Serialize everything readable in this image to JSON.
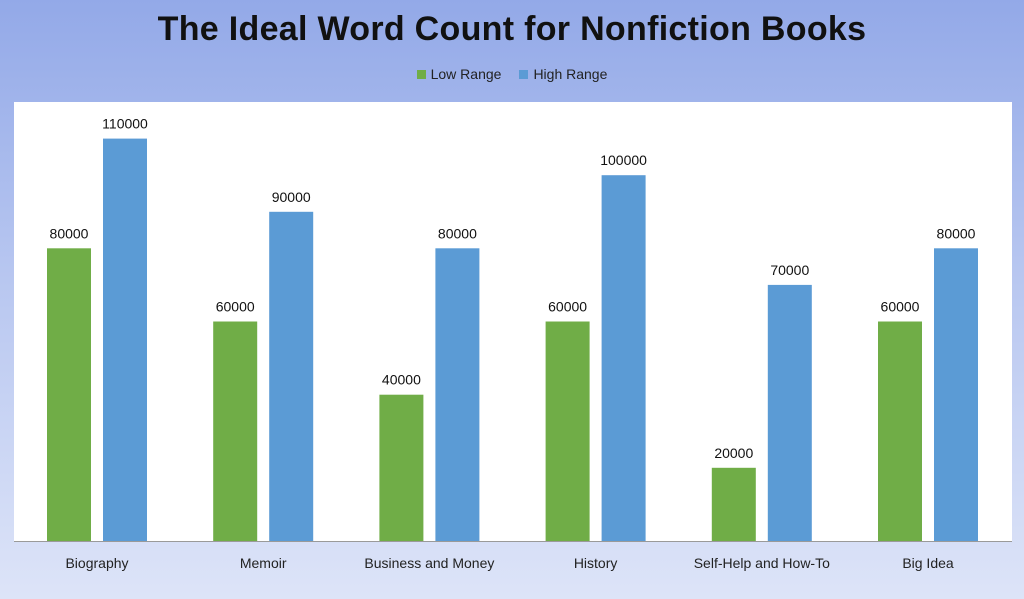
{
  "chart_data": {
    "type": "bar",
    "title": "The Ideal Word Count for Nonfiction Books",
    "categories": [
      "Biography",
      "Memoir",
      "Business and Money",
      "History",
      "Self-Help and How-To",
      "Big Idea"
    ],
    "series": [
      {
        "name": "Low Range",
        "color": "#70ad47",
        "values": [
          80000,
          60000,
          40000,
          60000,
          20000,
          60000
        ]
      },
      {
        "name": "High Range",
        "color": "#5b9bd5",
        "values": [
          110000,
          90000,
          80000,
          100000,
          70000,
          80000
        ]
      }
    ],
    "ylim": [
      0,
      120000
    ],
    "xlabel": "",
    "ylabel": "",
    "legend_position": "top",
    "grid": false,
    "data_labels": true
  }
}
